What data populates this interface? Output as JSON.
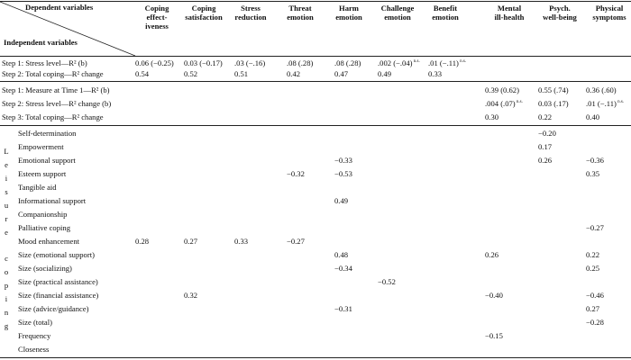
{
  "header": {
    "dependent_label": "Dependent variables",
    "independent_label": "Independent variables",
    "columns": [
      [
        "Coping",
        "effect-",
        "iveness"
      ],
      [
        "Coping",
        "satisfaction"
      ],
      [
        "Stress",
        "reduction"
      ],
      [
        "Threat",
        "emotion"
      ],
      [
        "Harm",
        "emotion"
      ],
      [
        "Challenge",
        "emotion"
      ],
      [
        "Benefit",
        "emotion"
      ],
      [
        "Mental",
        "ill-health"
      ],
      [
        "Psych.",
        "well-being"
      ],
      [
        "Physical",
        "symptoms"
      ]
    ]
  },
  "block1": [
    {
      "label": "Step 1: Stress level—R² (b)",
      "cells": [
        "0.06 (−0.25)",
        "0.03 (−0.17)",
        ".03 (−.16)",
        ".08 (.28)",
        ".08 (.28)",
        ".002 (−.04)",
        ".01 (−.11)",
        "",
        "",
        ""
      ],
      "ns": [
        false,
        false,
        false,
        false,
        false,
        true,
        true,
        false,
        false,
        false
      ]
    },
    {
      "label": "Step 2: Total coping—R² change",
      "cells": [
        "0.54",
        "0.52",
        "0.51",
        "0.42",
        "0.47",
        "0.49",
        "0.33",
        "",
        "",
        ""
      ],
      "ns": [
        false,
        false,
        false,
        false,
        false,
        false,
        false,
        false,
        false,
        false
      ]
    }
  ],
  "block2": [
    {
      "label": "Step 1: Measure at Time 1—R² (b)",
      "cells": [
        "",
        "",
        "",
        "",
        "",
        "",
        "",
        "0.39 (0.62)",
        "0.55 (.74)",
        "0.36 (.60)"
      ],
      "ns": [
        false,
        false,
        false,
        false,
        false,
        false,
        false,
        false,
        false,
        false
      ]
    },
    {
      "label": "Step 2: Stress level—R² change (b)",
      "cells": [
        "",
        "",
        "",
        "",
        "",
        "",
        "",
        ".004 (.07)",
        "0.03 (.17)",
        ".01 (−.11)"
      ],
      "ns": [
        false,
        false,
        false,
        false,
        false,
        false,
        false,
        true,
        false,
        true
      ]
    },
    {
      "label": "Step 3: Total coping—R² change",
      "cells": [
        "",
        "",
        "",
        "",
        "",
        "",
        "",
        "0.30",
        "0.22",
        "0.40"
      ],
      "ns": [
        false,
        false,
        false,
        false,
        false,
        false,
        false,
        false,
        false,
        false
      ]
    }
  ],
  "ns_mark": "n.s.",
  "side_label_1": [
    "L",
    "e",
    "i",
    "s",
    "u",
    "r",
    "e"
  ],
  "side_label_2": [
    "c",
    "o",
    "p",
    "i",
    "n",
    "g"
  ],
  "leisure": [
    {
      "label": "Self-determination",
      "cells": [
        "",
        "",
        "",
        "",
        "",
        "",
        "",
        "",
        "−0.20",
        ""
      ]
    },
    {
      "label": "Empowerment",
      "cells": [
        "",
        "",
        "",
        "",
        "",
        "",
        "",
        "",
        "0.17",
        ""
      ]
    },
    {
      "label": "Emotional support",
      "cells": [
        "",
        "",
        "",
        "",
        "−0.33",
        "",
        "",
        "",
        "0.26",
        "−0.36"
      ]
    },
    {
      "label": "Esteem support",
      "cells": [
        "",
        "",
        "",
        "−0.32",
        "−0.53",
        "",
        "",
        "",
        "",
        "0.35"
      ]
    },
    {
      "label": "Tangible aid",
      "cells": [
        "",
        "",
        "",
        "",
        "",
        "",
        "",
        "",
        "",
        ""
      ]
    },
    {
      "label": "Informational support",
      "cells": [
        "",
        "",
        "",
        "",
        "0.49",
        "",
        "",
        "",
        "",
        ""
      ]
    },
    {
      "label": "Companionship",
      "cells": [
        "",
        "",
        "",
        "",
        "",
        "",
        "",
        "",
        "",
        ""
      ]
    },
    {
      "label": "Palliative coping",
      "cells": [
        "",
        "",
        "",
        "",
        "",
        "",
        "",
        "",
        "",
        "−0.27"
      ]
    },
    {
      "label": "Mood enhancement",
      "cells": [
        "0.28",
        "0.27",
        "0.33",
        "−0.27",
        "",
        "",
        "",
        "",
        "",
        ""
      ]
    },
    {
      "label": "Size (emotional support)",
      "cells": [
        "",
        "",
        "",
        "",
        "0.48",
        "",
        "",
        "0.26",
        "",
        "0.22"
      ]
    },
    {
      "label": "Size (socializing)",
      "cells": [
        "",
        "",
        "",
        "",
        "−0.34",
        "",
        "",
        "",
        "",
        "0.25"
      ]
    },
    {
      "label": "Size (practical assistance)",
      "cells": [
        "",
        "",
        "",
        "",
        "",
        "−0.52",
        "",
        "",
        "",
        ""
      ]
    },
    {
      "label": "Size (financial assistance)",
      "cells": [
        "",
        "0.32",
        "",
        "",
        "",
        "",
        "",
        "−0.40",
        "",
        "−0.46"
      ]
    },
    {
      "label": "Size (advice/guidance)",
      "cells": [
        "",
        "",
        "",
        "",
        "−0.31",
        "",
        "",
        "",
        "",
        "0.27"
      ]
    },
    {
      "label": "Size (total)",
      "cells": [
        "",
        "",
        "",
        "",
        "",
        "",
        "",
        "",
        "",
        "−0.28"
      ]
    },
    {
      "label": "Frequency",
      "cells": [
        "",
        "",
        "",
        "",
        "",
        "",
        "",
        "−0.15",
        "",
        ""
      ]
    },
    {
      "label": "Closeness",
      "cells": [
        "",
        "",
        "",
        "",
        "",
        "",
        "",
        "",
        "",
        ""
      ]
    }
  ]
}
